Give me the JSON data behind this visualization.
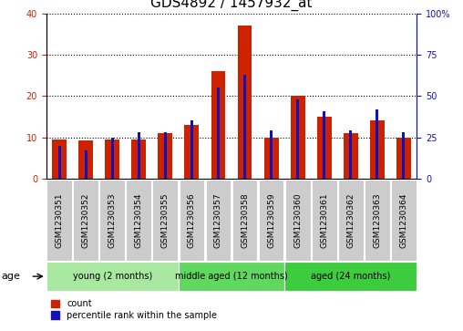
{
  "title": "GDS4892 / 1457932_at",
  "samples": [
    "GSM1230351",
    "GSM1230352",
    "GSM1230353",
    "GSM1230354",
    "GSM1230355",
    "GSM1230356",
    "GSM1230357",
    "GSM1230358",
    "GSM1230359",
    "GSM1230360",
    "GSM1230361",
    "GSM1230362",
    "GSM1230363",
    "GSM1230364"
  ],
  "counts": [
    9.5,
    9.2,
    9.5,
    9.5,
    11,
    13,
    26,
    37,
    10,
    20,
    15,
    11,
    14,
    10
  ],
  "percentiles": [
    20,
    17,
    25,
    28,
    28,
    35,
    55,
    63,
    29,
    48,
    41,
    29,
    42,
    28
  ],
  "groups": [
    {
      "label": "young (2 months)",
      "start": 0,
      "end": 5,
      "color": "#a8e8a0"
    },
    {
      "label": "middle aged (12 months)",
      "start": 5,
      "end": 9,
      "color": "#60d860"
    },
    {
      "label": "aged (24 months)",
      "start": 9,
      "end": 14,
      "color": "#3dcc3d"
    }
  ],
  "bar_color": "#cc2200",
  "pct_color": "#1111bb",
  "left_ylim": [
    0,
    40
  ],
  "right_ylim": [
    0,
    100
  ],
  "left_yticks": [
    0,
    10,
    20,
    30,
    40
  ],
  "right_yticks": [
    0,
    25,
    50,
    75,
    100
  ],
  "right_yticklabels": [
    "0",
    "25",
    "50",
    "75",
    "100%"
  ],
  "sample_bg": "#cccccc",
  "title_fontsize": 11,
  "tick_fontsize": 7,
  "label_fontsize": 8,
  "age_label": "age"
}
